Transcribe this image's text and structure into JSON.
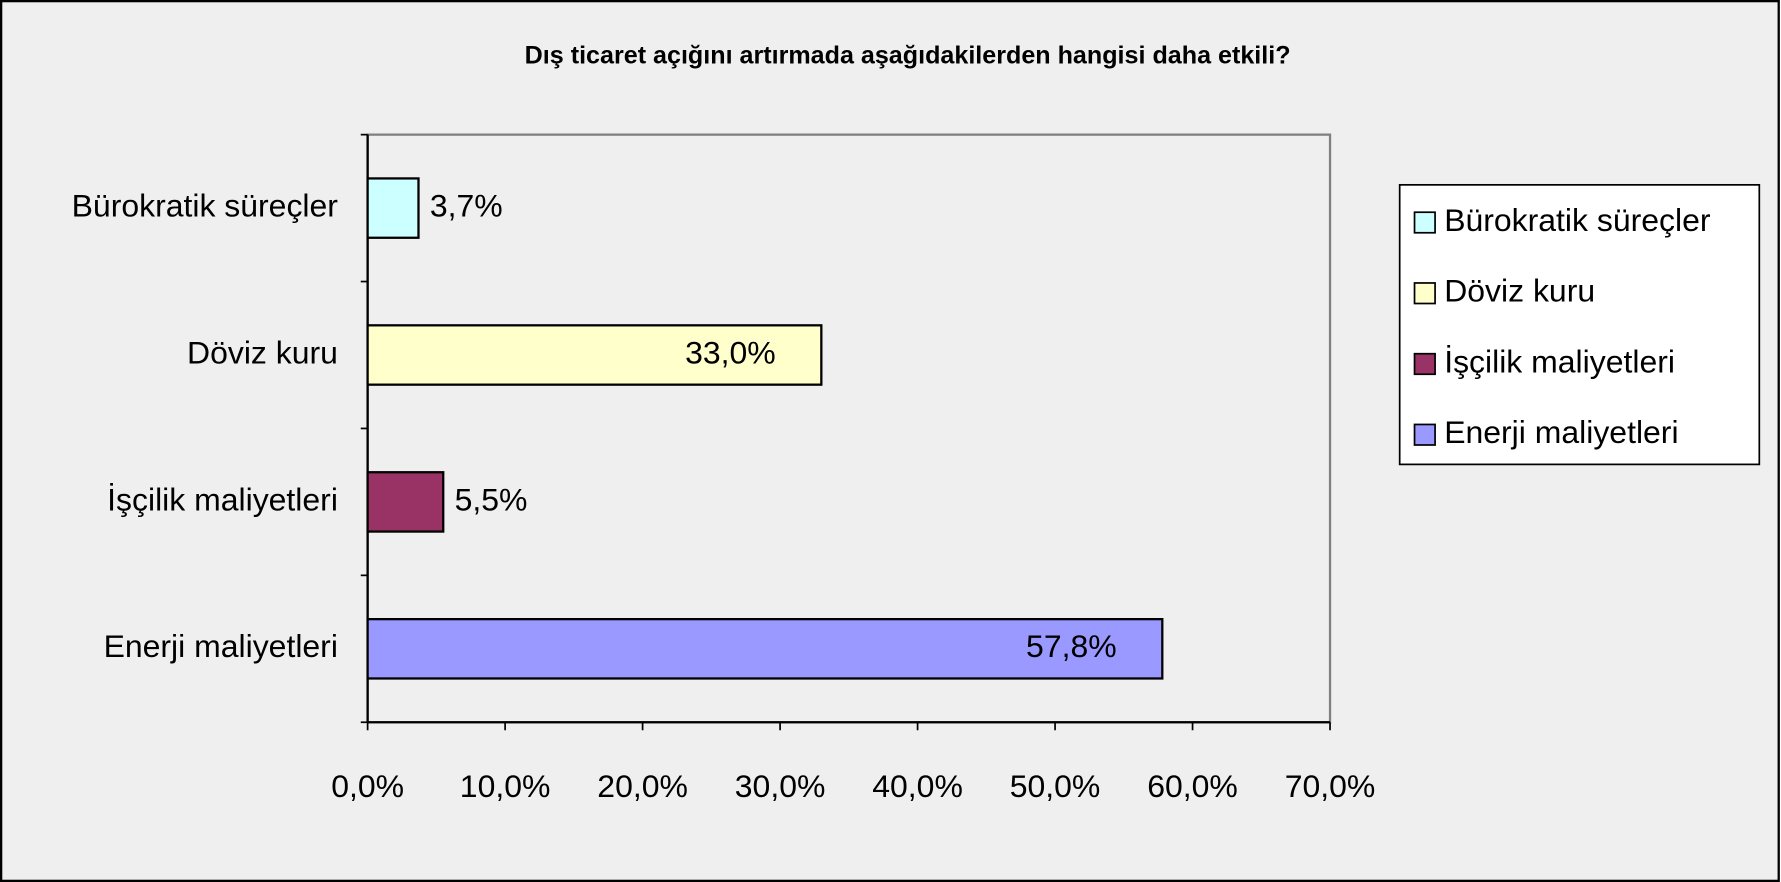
{
  "chart_data": {
    "type": "bar",
    "orientation": "horizontal",
    "title": "Dış ticaret açığını artırmada aşağıdakilerden hangisi daha etkili?",
    "categories": [
      "Bürokratik süreçler",
      "Döviz kuru",
      "İşçilik maliyetleri",
      "Enerji maliyetleri"
    ],
    "values": [
      3.7,
      33.0,
      5.5,
      57.8
    ],
    "value_labels": [
      "3,7%",
      "33,0%",
      "5,5%",
      "57,8%"
    ],
    "colors": [
      "#ccffff",
      "#ffffcc",
      "#993366",
      "#9999ff"
    ],
    "xlim": [
      0,
      70
    ],
    "xticks": [
      {
        "value": 0,
        "label": "0,0%"
      },
      {
        "value": 10,
        "label": "10,0%"
      },
      {
        "value": 20,
        "label": "20,0%"
      },
      {
        "value": 30,
        "label": "30,0%"
      },
      {
        "value": 40,
        "label": "40,0%"
      },
      {
        "value": 50,
        "label": "50,0%"
      },
      {
        "value": 60,
        "label": "60,0%"
      },
      {
        "value": 70,
        "label": "70,0%"
      }
    ],
    "legend": "right",
    "grid": false
  }
}
